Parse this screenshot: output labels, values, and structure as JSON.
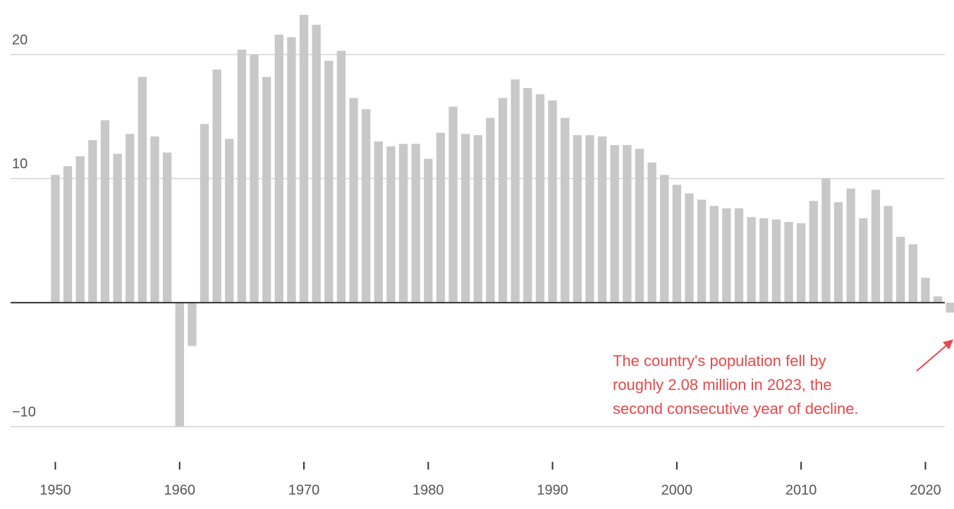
{
  "chart_data": {
    "type": "bar",
    "color": "#c8c8c8",
    "annotation_color": "#e8484a",
    "grid": true,
    "x": [
      1950,
      1951,
      1952,
      1953,
      1954,
      1955,
      1956,
      1957,
      1958,
      1959,
      1960,
      1961,
      1962,
      1963,
      1964,
      1965,
      1966,
      1967,
      1968,
      1969,
      1970,
      1971,
      1972,
      1973,
      1974,
      1975,
      1976,
      1977,
      1978,
      1979,
      1980,
      1981,
      1982,
      1983,
      1984,
      1985,
      1986,
      1987,
      1988,
      1989,
      1990,
      1991,
      1992,
      1993,
      1994,
      1995,
      1996,
      1997,
      1998,
      1999,
      2000,
      2001,
      2002,
      2003,
      2004,
      2005,
      2006,
      2007,
      2008,
      2009,
      2010,
      2011,
      2012,
      2013,
      2014,
      2015,
      2016,
      2017,
      2018,
      2019,
      2020,
      2021,
      2022
    ],
    "values": [
      10.3,
      11.0,
      11.8,
      13.1,
      14.7,
      12.0,
      13.6,
      18.2,
      13.4,
      12.1,
      -10.0,
      -3.5,
      14.4,
      18.8,
      13.2,
      20.4,
      20.0,
      18.2,
      21.6,
      21.4,
      23.2,
      22.4,
      19.5,
      20.3,
      16.5,
      15.6,
      13.0,
      12.6,
      12.8,
      12.8,
      11.6,
      13.7,
      15.8,
      13.6,
      13.5,
      14.9,
      16.5,
      18.0,
      17.3,
      16.8,
      16.3,
      14.9,
      13.5,
      13.5,
      13.4,
      12.7,
      12.7,
      12.4,
      11.3,
      10.3,
      9.5,
      8.8,
      8.3,
      7.8,
      7.6,
      7.6,
      6.9,
      6.8,
      6.7,
      6.5,
      6.4,
      8.2,
      10.0,
      8.1,
      9.2,
      6.8,
      9.1,
      7.8,
      5.3,
      4.7,
      2.0,
      0.5,
      -0.8
    ],
    "xlim": [
      1946.4,
      2022.3
    ],
    "xticks": [
      1950,
      1960,
      1970,
      1980,
      1990,
      2000,
      2010,
      2020
    ],
    "ylim": [
      -10,
      24.4
    ],
    "yticks": [
      {
        "value": -10,
        "label": "−10"
      },
      10,
      20
    ],
    "annotation": [
      "The country's population fell by",
      "roughly 2.08 million in 2023, the",
      "second consecutive year of decline."
    ]
  }
}
